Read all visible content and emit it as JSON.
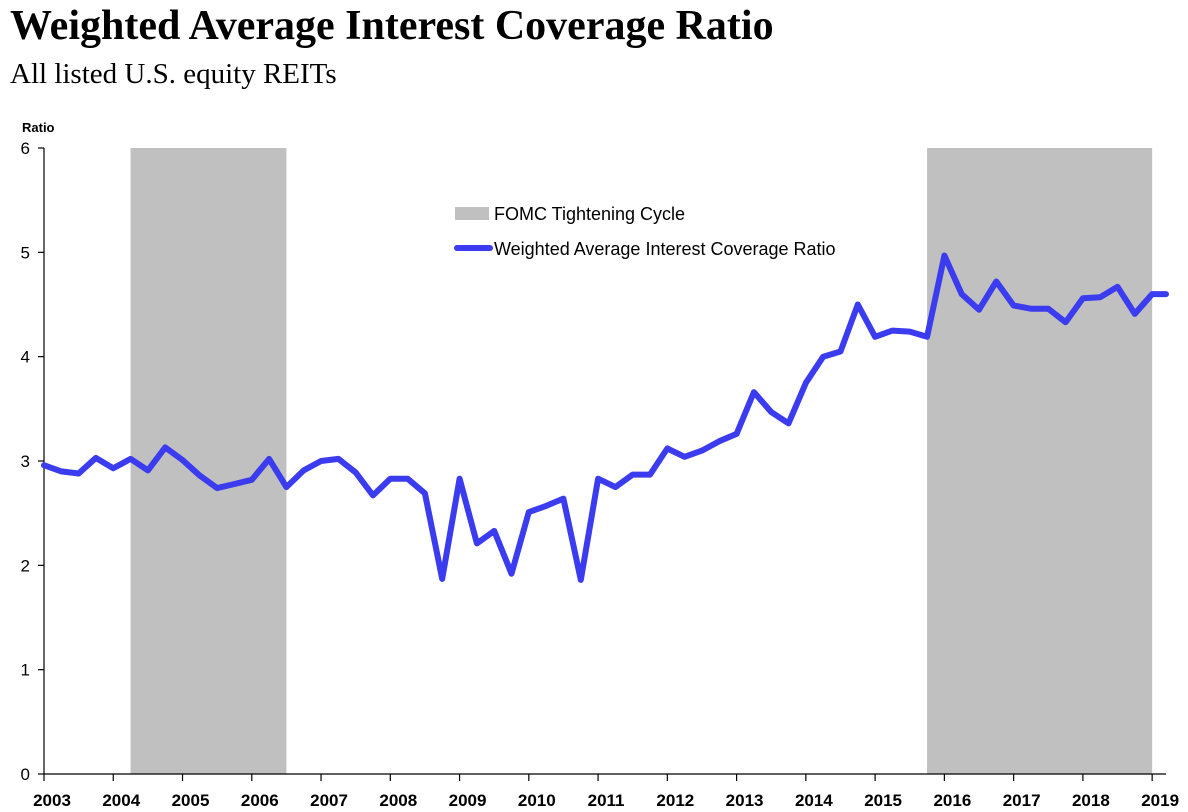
{
  "title": "Weighted Average Interest Coverage Ratio",
  "subtitle": "All listed U.S. equity REITs",
  "chart_data": {
    "type": "line",
    "title": "Weighted Average Interest Coverage Ratio",
    "subtitle": "All listed U.S. equity REITs",
    "ylabel": "Ratio",
    "xlabel": "",
    "xlim": [
      2003,
      2019.2
    ],
    "ylim": [
      0,
      6
    ],
    "yticks": [
      "0",
      "1",
      "2",
      "3",
      "4",
      "5",
      "6"
    ],
    "xticks": [
      "2003",
      "2004",
      "2005",
      "2006",
      "2007",
      "2008",
      "2009",
      "2010",
      "2011",
      "2012",
      "2013",
      "2014",
      "2015",
      "2016",
      "2017",
      "2018",
      "2019"
    ],
    "grid": false,
    "legend_position": "top-center",
    "shaded_periods": {
      "name": "FOMC Tightening Cycle",
      "color": "#c0c0c0",
      "ranges": [
        [
          2004.25,
          2006.5
        ],
        [
          2015.75,
          2019.0
        ]
      ]
    },
    "series": [
      {
        "name": "Weighted Average Interest Coverage Ratio",
        "color": "#3b3bf0",
        "x": [
          2003.0,
          2003.25,
          2003.5,
          2003.75,
          2004.0,
          2004.25,
          2004.5,
          2004.75,
          2005.0,
          2005.25,
          2005.5,
          2005.75,
          2006.0,
          2006.25,
          2006.5,
          2006.75,
          2007.0,
          2007.25,
          2007.5,
          2007.75,
          2008.0,
          2008.25,
          2008.5,
          2008.75,
          2009.0,
          2009.25,
          2009.5,
          2009.75,
          2010.0,
          2010.25,
          2010.5,
          2010.75,
          2011.0,
          2011.25,
          2011.5,
          2011.75,
          2012.0,
          2012.25,
          2012.5,
          2012.75,
          2013.0,
          2013.25,
          2013.5,
          2013.75,
          2014.0,
          2014.25,
          2014.5,
          2014.75,
          2015.0,
          2015.25,
          2015.5,
          2015.75,
          2016.0,
          2016.25,
          2016.5,
          2016.75,
          2017.0,
          2017.25,
          2017.5,
          2017.75,
          2018.0,
          2018.25,
          2018.5,
          2018.75,
          2019.0,
          2019.2
        ],
        "values": [
          2.96,
          2.9,
          2.88,
          3.03,
          2.93,
          3.02,
          2.91,
          3.13,
          3.01,
          2.86,
          2.74,
          2.78,
          2.82,
          3.02,
          2.75,
          2.91,
          3.0,
          3.02,
          2.89,
          2.67,
          2.83,
          2.83,
          2.69,
          1.87,
          2.83,
          2.21,
          2.33,
          1.92,
          2.51,
          2.57,
          2.64,
          1.86,
          2.83,
          2.75,
          2.87,
          2.87,
          3.12,
          3.04,
          3.1,
          3.19,
          3.26,
          3.66,
          3.47,
          3.36,
          3.75,
          4.0,
          4.05,
          4.5,
          4.19,
          4.25,
          4.24,
          4.19,
          4.97,
          4.6,
          4.45,
          4.72,
          4.49,
          4.46,
          4.46,
          4.33,
          4.56,
          4.57,
          4.67,
          4.41,
          4.6,
          4.6
        ]
      }
    ]
  }
}
